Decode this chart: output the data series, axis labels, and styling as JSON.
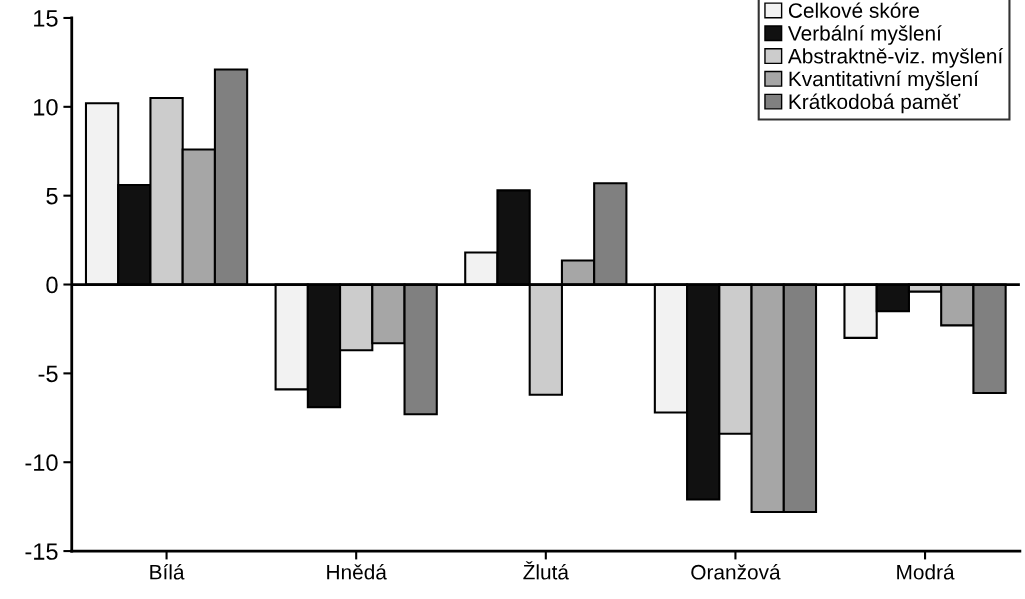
{
  "chart_data": {
    "type": "bar",
    "categories": [
      "Bílá",
      "Hnědá",
      "Žlutá",
      "Oranžová",
      "Modrá"
    ],
    "series": [
      {
        "name": "Celkové skóre",
        "color": "#f2f2f2",
        "values": [
          10.2,
          -5.9,
          1.8,
          -7.2,
          -3.0
        ]
      },
      {
        "name": "Verbální myšlení",
        "color": "#111111",
        "values": [
          5.6,
          -6.9,
          5.3,
          -12.1,
          -1.5
        ]
      },
      {
        "name": "Abstraktně-viz. myšlení",
        "color": "#cccccc",
        "values": [
          10.5,
          -3.7,
          -6.2,
          -8.4,
          -0.4
        ]
      },
      {
        "name": "Kvantitativní myšlení",
        "color": "#a6a6a6",
        "values": [
          7.6,
          -3.3,
          1.35,
          -12.8,
          -2.3
        ]
      },
      {
        "name": "Krátkodobá paměť",
        "color": "#808080",
        "values": [
          12.1,
          -7.3,
          5.7,
          -12.8,
          -6.1
        ]
      }
    ],
    "ylim": [
      -15,
      15
    ],
    "yticks": [
      -15,
      -10,
      -5,
      0,
      5,
      10,
      15
    ],
    "ref_lines": [
      {
        "axis": "y",
        "value": 0,
        "color": "#000000"
      }
    ],
    "legend": "top right"
  }
}
